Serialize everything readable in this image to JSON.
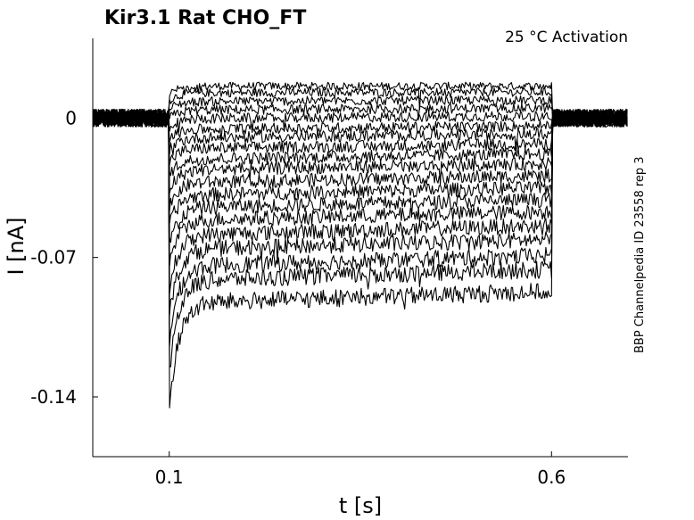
{
  "chart_data": {
    "type": "line",
    "title": "Kir3.1  Rat  CHO_FT",
    "condition": "25 °C  Activation",
    "side_label": "BBP Channelpedia ID 23558 rep 3",
    "xlabel": "t [s]",
    "ylabel": "I [nA]",
    "xlim": [
      0.0,
      0.7
    ],
    "ylim": [
      -0.17,
      0.04
    ],
    "x_ticks": [
      0.1,
      0.6
    ],
    "x_tick_labels": [
      "0.1",
      "0.6"
    ],
    "y_ticks": [
      0,
      -0.07,
      -0.14
    ],
    "y_tick_labels": [
      "0",
      "-0.07",
      "-0.14"
    ],
    "grid": false,
    "legend": "none",
    "line_color": "#000000",
    "protocol": {
      "step_start": 0.1,
      "step_end": 0.6,
      "baseline": 0.0
    },
    "series": [
      {
        "steady": 0.016
      },
      {
        "steady": 0.013
      },
      {
        "steady": 0.009
      },
      {
        "steady": 0.005
      },
      {
        "steady": 0.001
      },
      {
        "steady": -0.004
      },
      {
        "steady": -0.008
      },
      {
        "steady": -0.013
      },
      {
        "steady": -0.018
      },
      {
        "steady": -0.023
      },
      {
        "steady": -0.029
      },
      {
        "steady": -0.035
      },
      {
        "steady": -0.041
      },
      {
        "steady": -0.047
      },
      {
        "steady": -0.054
      },
      {
        "steady": -0.061
      },
      {
        "steady": -0.069
      },
      {
        "steady": -0.076
      },
      {
        "steady": -0.087
      }
    ]
  }
}
